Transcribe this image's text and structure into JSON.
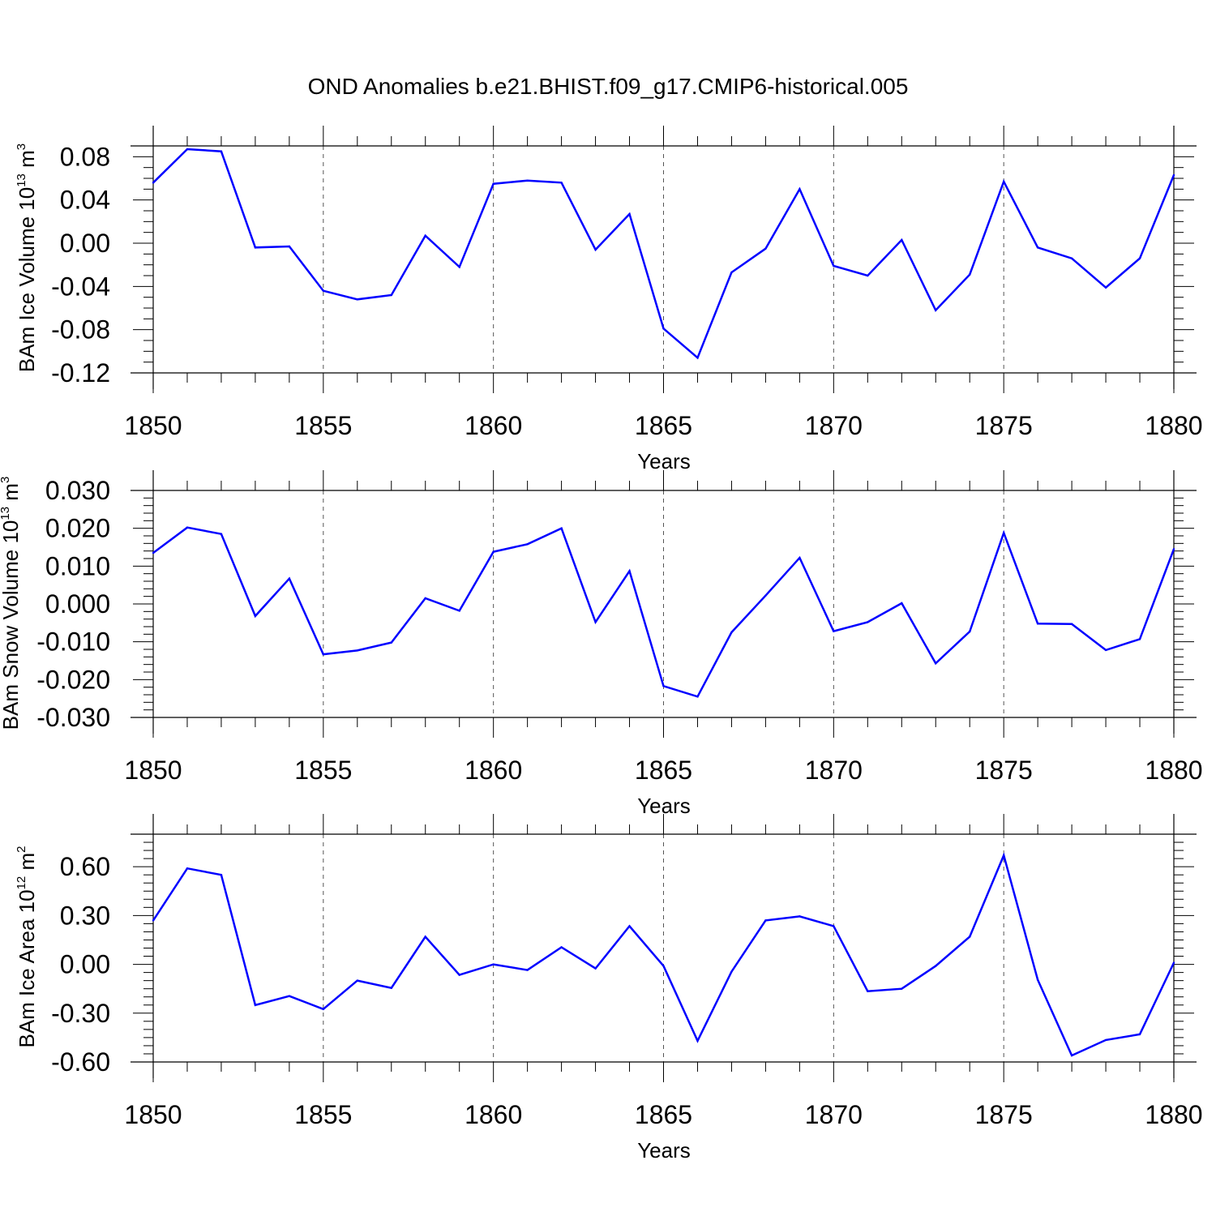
{
  "title": "OND Anomalies b.e21.BHIST.f09_g17.CMIP6-historical.005",
  "colors": {
    "series": "#0000ff",
    "axis": "#000000",
    "grid": "#555555",
    "background": "#ffffff"
  },
  "chart_data": [
    {
      "type": "line",
      "ylabel": {
        "text": "BAm Ice Volume 10",
        "exp": "13",
        "unit": " m",
        "unit_exp": "3"
      },
      "xlabel": "Years",
      "xlim": [
        1850,
        1880
      ],
      "ylim": [
        -0.12,
        0.09
      ],
      "x_ticks": [
        1850,
        1855,
        1860,
        1865,
        1870,
        1875,
        1880
      ],
      "x_tick_labels": [
        "1850",
        "1855",
        "1860",
        "1865",
        "1870",
        "1875",
        "1880"
      ],
      "y_ticks": [
        -0.12,
        -0.08,
        -0.04,
        0.0,
        0.04,
        0.08
      ],
      "y_tick_labels": [
        "-0.12",
        "-0.08",
        "-0.04",
        "0.00",
        "0.04",
        "0.08"
      ],
      "y_minor_step": 0.01,
      "grid": "dashed vertical at major x ticks",
      "x": [
        1850,
        1851,
        1852,
        1853,
        1854,
        1855,
        1856,
        1857,
        1858,
        1859,
        1860,
        1861,
        1862,
        1863,
        1864,
        1865,
        1866,
        1867,
        1868,
        1869,
        1870,
        1871,
        1872,
        1873,
        1874,
        1875,
        1876,
        1877,
        1878,
        1879,
        1880
      ],
      "values": [
        0.056,
        0.087,
        0.085,
        -0.004,
        -0.003,
        -0.044,
        -0.052,
        -0.048,
        0.007,
        -0.022,
        0.055,
        0.058,
        0.056,
        -0.006,
        0.027,
        -0.079,
        -0.106,
        -0.027,
        -0.005,
        0.05,
        -0.021,
        -0.03,
        0.003,
        -0.062,
        -0.029,
        0.057,
        -0.004,
        -0.014,
        -0.041,
        -0.014,
        0.063
      ]
    },
    {
      "type": "line",
      "ylabel": {
        "text": "BAm Snow Volume 10",
        "exp": "13",
        "unit": " m",
        "unit_exp": "3"
      },
      "xlabel": "Years",
      "xlim": [
        1850,
        1880
      ],
      "ylim": [
        -0.03,
        0.03
      ],
      "x_ticks": [
        1850,
        1855,
        1860,
        1865,
        1870,
        1875,
        1880
      ],
      "x_tick_labels": [
        "1850",
        "1855",
        "1860",
        "1865",
        "1870",
        "1875",
        "1880"
      ],
      "y_ticks": [
        -0.03,
        -0.02,
        -0.01,
        0.0,
        0.01,
        0.02,
        0.03
      ],
      "y_tick_labels": [
        "-0.030",
        "-0.020",
        "-0.010",
        "0.000",
        "0.010",
        "0.020",
        "0.030"
      ],
      "y_minor_step": 0.002,
      "grid": "dashed vertical at major x ticks",
      "x": [
        1850,
        1851,
        1852,
        1853,
        1854,
        1855,
        1856,
        1857,
        1858,
        1859,
        1860,
        1861,
        1862,
        1863,
        1864,
        1865,
        1866,
        1867,
        1868,
        1869,
        1870,
        1871,
        1872,
        1873,
        1874,
        1875,
        1876,
        1877,
        1878,
        1879,
        1880
      ],
      "values": [
        0.0135,
        0.0202,
        0.0185,
        -0.0032,
        0.0067,
        -0.0133,
        -0.0123,
        -0.0102,
        0.0015,
        -0.0018,
        0.0138,
        0.0158,
        0.02,
        -0.0048,
        0.0087,
        -0.0217,
        -0.0245,
        -0.0075,
        0.0022,
        0.0122,
        -0.0072,
        -0.0048,
        0.0002,
        -0.0157,
        -0.0073,
        0.0188,
        -0.0052,
        -0.0053,
        -0.0122,
        -0.0093,
        0.0145
      ]
    },
    {
      "type": "line",
      "ylabel": {
        "text": "BAm Ice Area 10",
        "exp": "12",
        "unit": " m",
        "unit_exp": "2"
      },
      "xlabel": "Years",
      "xlim": [
        1850,
        1880
      ],
      "ylim": [
        -0.6,
        0.8
      ],
      "x_ticks": [
        1850,
        1855,
        1860,
        1865,
        1870,
        1875,
        1880
      ],
      "x_tick_labels": [
        "1850",
        "1855",
        "1860",
        "1865",
        "1870",
        "1875",
        "1880"
      ],
      "y_ticks": [
        -0.6,
        -0.3,
        0.0,
        0.3,
        0.6
      ],
      "y_tick_labels": [
        "-0.60",
        "-0.30",
        "0.00",
        "0.30",
        "0.60"
      ],
      "y_minor_step": 0.05,
      "grid": "dashed vertical at major x ticks",
      "x": [
        1850,
        1851,
        1852,
        1853,
        1854,
        1855,
        1856,
        1857,
        1858,
        1859,
        1860,
        1861,
        1862,
        1863,
        1864,
        1865,
        1866,
        1867,
        1868,
        1869,
        1870,
        1871,
        1872,
        1873,
        1874,
        1875,
        1876,
        1877,
        1878,
        1879,
        1880
      ],
      "values": [
        0.27,
        0.59,
        0.55,
        -0.25,
        -0.195,
        -0.275,
        -0.1,
        -0.145,
        0.17,
        -0.065,
        0.0,
        -0.035,
        0.105,
        -0.025,
        0.235,
        -0.01,
        -0.47,
        -0.045,
        0.27,
        0.295,
        0.235,
        -0.165,
        -0.15,
        -0.01,
        0.17,
        0.67,
        -0.095,
        -0.56,
        -0.465,
        -0.43,
        0.01
      ]
    }
  ]
}
